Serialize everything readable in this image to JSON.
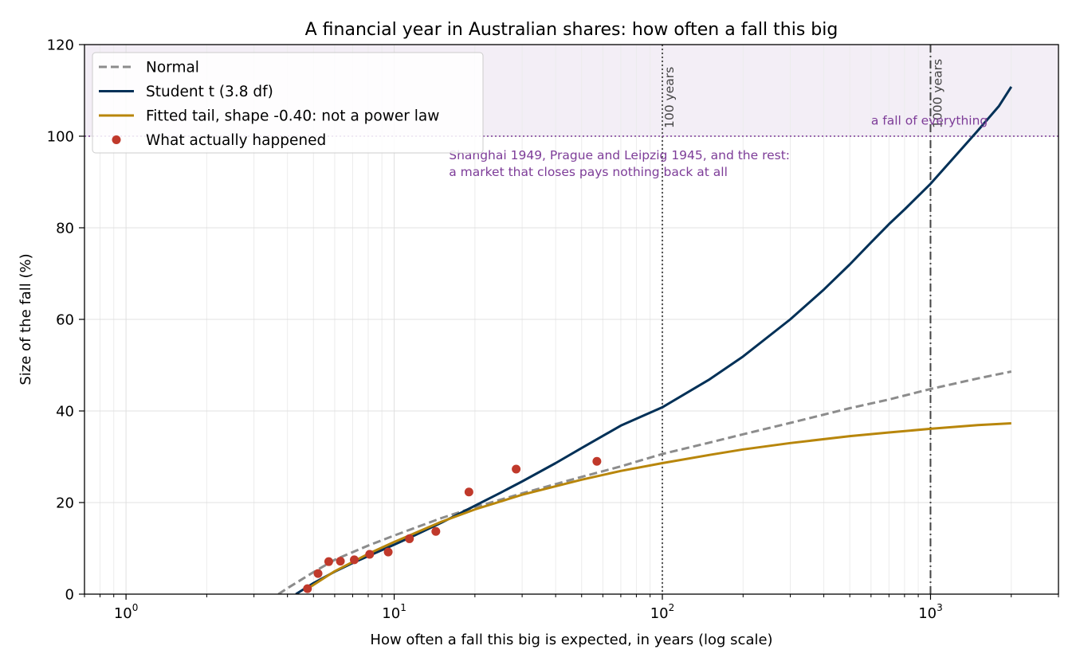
{
  "chart_data": {
    "type": "line",
    "title": "A financial year in Australian shares: how often a fall this big",
    "xlabel": "How often a fall this big is expected, in years (log scale)",
    "ylabel": "Size of the fall (%)",
    "xscale": "log",
    "xlim": [
      0.7,
      3000
    ],
    "ylim": [
      0,
      120
    ],
    "x_ticks": [
      {
        "base": "10",
        "exp": "0",
        "value": 1
      },
      {
        "base": "10",
        "exp": "1",
        "value": 10
      },
      {
        "base": "10",
        "exp": "2",
        "value": 100
      },
      {
        "base": "10",
        "exp": "3",
        "value": 1000
      }
    ],
    "y_ticks": [
      "0",
      "20",
      "40",
      "60",
      "80",
      "100",
      "120"
    ],
    "y_tick_values": [
      0,
      20,
      40,
      60,
      80,
      100,
      120
    ],
    "grid": true,
    "legend_position": "top-left",
    "series": [
      {
        "name": "Normal",
        "style": "dashed",
        "color": "#8c8c8c",
        "x": [
          3.7,
          4,
          5,
          6,
          8,
          10,
          15,
          20,
          30,
          50,
          70,
          100,
          150,
          200,
          300,
          500,
          700,
          1000,
          1500,
          2000
        ],
        "y": [
          0,
          1.3,
          4.8,
          7.5,
          10.6,
          12.8,
          16.6,
          19.0,
          22.0,
          25.6,
          27.9,
          30.6,
          33.1,
          34.9,
          37.4,
          40.6,
          42.5,
          44.8,
          47.1,
          48.6
        ]
      },
      {
        "name": "Student t (3.8 df)",
        "style": "solid",
        "color": "#003057",
        "x": [
          4.3,
          5,
          6,
          7,
          8,
          10,
          12,
          15,
          20,
          25,
          30,
          40,
          50,
          70,
          100,
          150,
          200,
          300,
          400,
          500,
          600,
          700,
          800,
          1000,
          1200,
          1500,
          1800,
          2000
        ],
        "y": [
          0,
          2.4,
          4.9,
          6.8,
          8.3,
          10.8,
          12.9,
          15.6,
          19.3,
          22.2,
          24.6,
          28.6,
          31.9,
          36.8,
          40.8,
          46.9,
          51.9,
          60.0,
          66.5,
          72.0,
          76.8,
          80.8,
          84.0,
          89.6,
          94.8,
          101.2,
          106.6,
          110.8
        ]
      },
      {
        "name": "Fitted tail, shape -0.40: not a power law",
        "style": "solid",
        "color": "#b8860b",
        "x": [
          4.7,
          6,
          8,
          10,
          15,
          20,
          30,
          50,
          70,
          100,
          150,
          200,
          300,
          500,
          700,
          1000,
          1500,
          2000
        ],
        "y": [
          1.0,
          5.0,
          8.8,
          11.4,
          15.8,
          18.5,
          21.7,
          25.0,
          26.9,
          28.6,
          30.4,
          31.6,
          33.0,
          34.5,
          35.3,
          36.1,
          36.9,
          37.3
        ]
      },
      {
        "name": "What actually happened",
        "style": "markers",
        "color": "#c0392b",
        "x": [
          4.75,
          5.2,
          5.7,
          6.3,
          7.1,
          8.1,
          9.5,
          11.4,
          14.3,
          19.0,
          28.5,
          57.0
        ],
        "y": [
          1.2,
          4.5,
          7.1,
          7.2,
          7.5,
          8.7,
          9.2,
          12.1,
          13.7,
          22.3,
          27.3,
          29.0
        ]
      }
    ],
    "reference_lines": [
      {
        "orientation": "vertical",
        "x": 100,
        "style": "dotted",
        "color": "#555555",
        "label": "100 years"
      },
      {
        "orientation": "vertical",
        "x": 1000,
        "style": "dashdot",
        "color": "#444444",
        "label": "1000 years"
      },
      {
        "orientation": "horizontal",
        "y": 100,
        "style": "dotted",
        "color": "#7d3c98"
      }
    ],
    "shaded_region": {
      "y_from": 100,
      "y_to": 120,
      "color": "#f3eef6"
    },
    "annotations": [
      {
        "text": "a fall of everything",
        "x": 600,
        "y": 102.5,
        "color": "#7d3c98"
      },
      {
        "lines": [
          "Shanghai 1949, Prague and Leipzig 1945, and the rest:",
          "a market that closes pays nothing back at all"
        ],
        "x": 16,
        "y": 95,
        "color": "#7d3c98"
      }
    ]
  }
}
